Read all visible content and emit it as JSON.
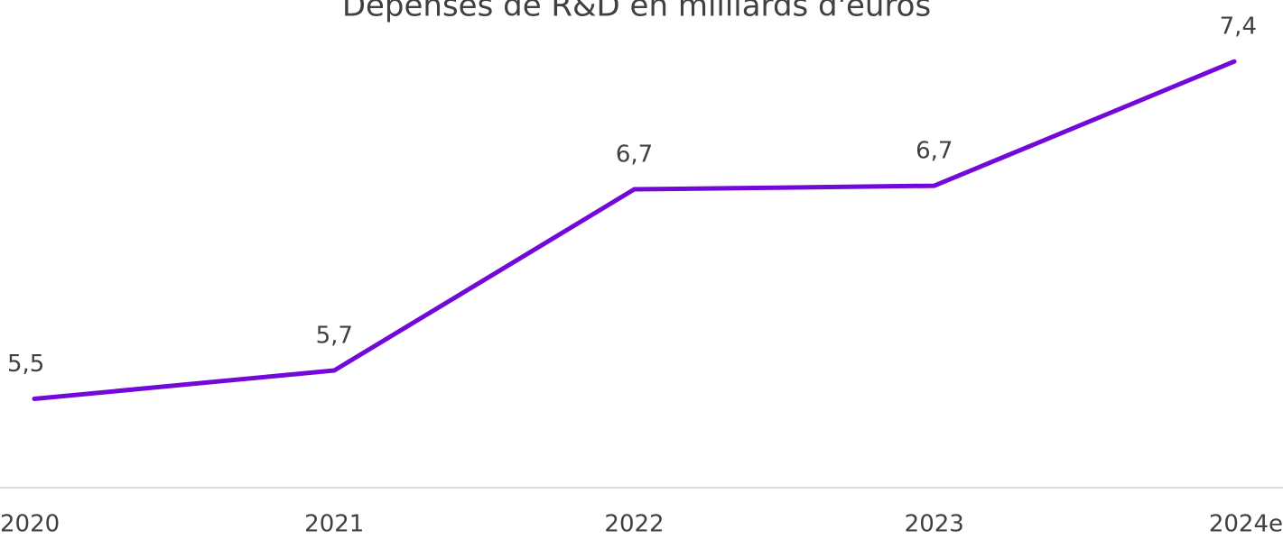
{
  "chart_data": {
    "type": "line",
    "title": "Dépenses de R&D en milliards d'euros",
    "categories": [
      "2020",
      "2021",
      "2022",
      "2023",
      "2024e"
    ],
    "series": [
      {
        "name": "Dépenses de R&D",
        "color": "#7209d9",
        "values": [
          5.5,
          5.66,
          6.68,
          6.7,
          7.4
        ],
        "value_labels": [
          "5,5",
          "5,7",
          "6,7",
          "6,7",
          "7,4"
        ]
      }
    ],
    "ylim": [
      5,
      7.5
    ]
  }
}
